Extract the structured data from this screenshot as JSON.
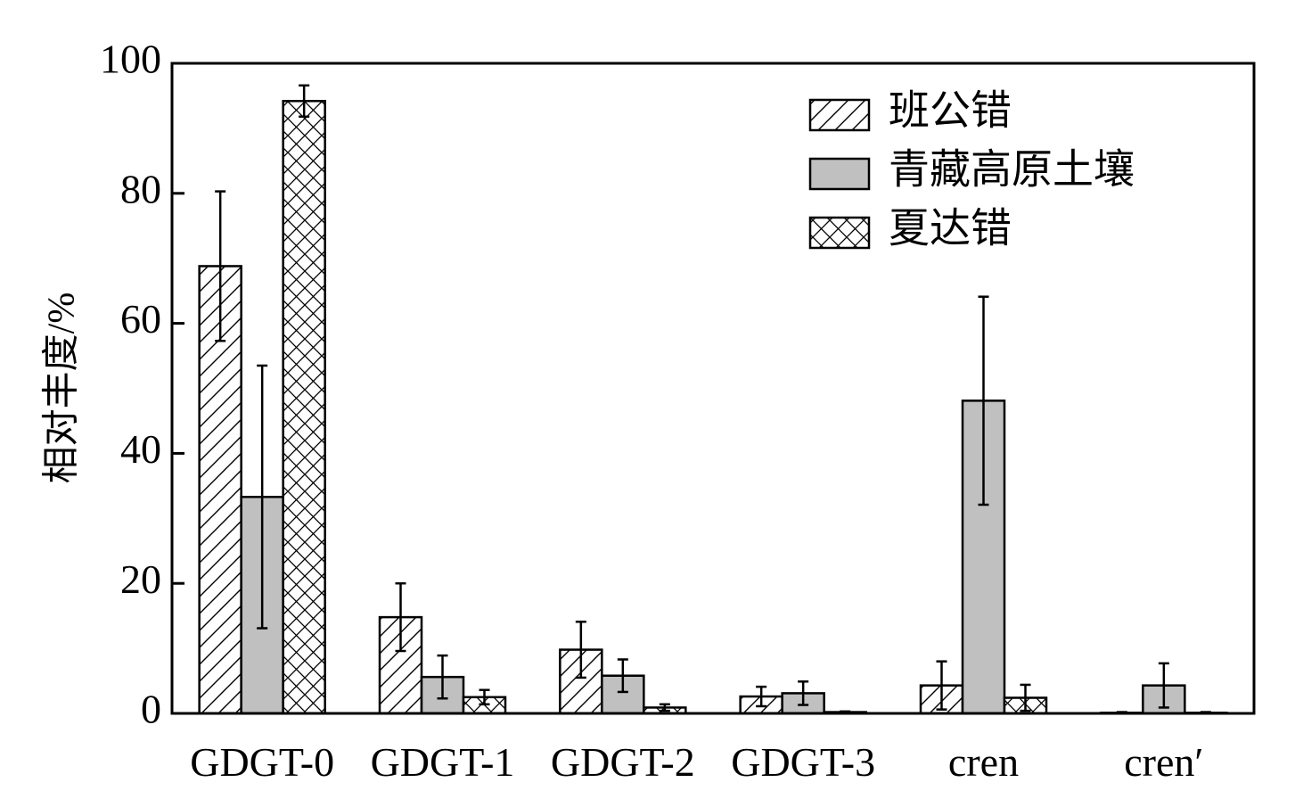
{
  "chart_data": {
    "type": "bar",
    "title": "",
    "xlabel": "",
    "ylabel": "相对丰度/%",
    "ylim": [
      0,
      100
    ],
    "yticks": [
      0,
      20,
      40,
      60,
      80,
      100
    ],
    "grid": false,
    "legend_position": "top-right",
    "categories": [
      "GDGT-0",
      "GDGT-1",
      "GDGT-2",
      "GDGT-3",
      "cren",
      "cren′"
    ],
    "series": [
      {
        "name": "班公错",
        "pattern": "diagonal-hatch",
        "fill": "#ffffff",
        "values": [
          68.8,
          14.8,
          9.8,
          2.6,
          4.3,
          0.1
        ],
        "errors": [
          11.5,
          5.2,
          4.3,
          1.5,
          3.7,
          0.1
        ]
      },
      {
        "name": "青藏高原土壤",
        "pattern": "solid",
        "fill": "#c0c0c0",
        "values": [
          33.3,
          5.6,
          5.8,
          3.1,
          48.1,
          4.3
        ],
        "errors": [
          20.2,
          3.3,
          2.5,
          1.8,
          16.0,
          3.4
        ]
      },
      {
        "name": "夏达错",
        "pattern": "cross-hatch",
        "fill": "#ffffff",
        "values": [
          94.2,
          2.5,
          0.9,
          0.2,
          2.4,
          0.1
        ],
        "errors": [
          2.4,
          1.1,
          0.5,
          0.1,
          2.0,
          0.1
        ]
      }
    ]
  }
}
